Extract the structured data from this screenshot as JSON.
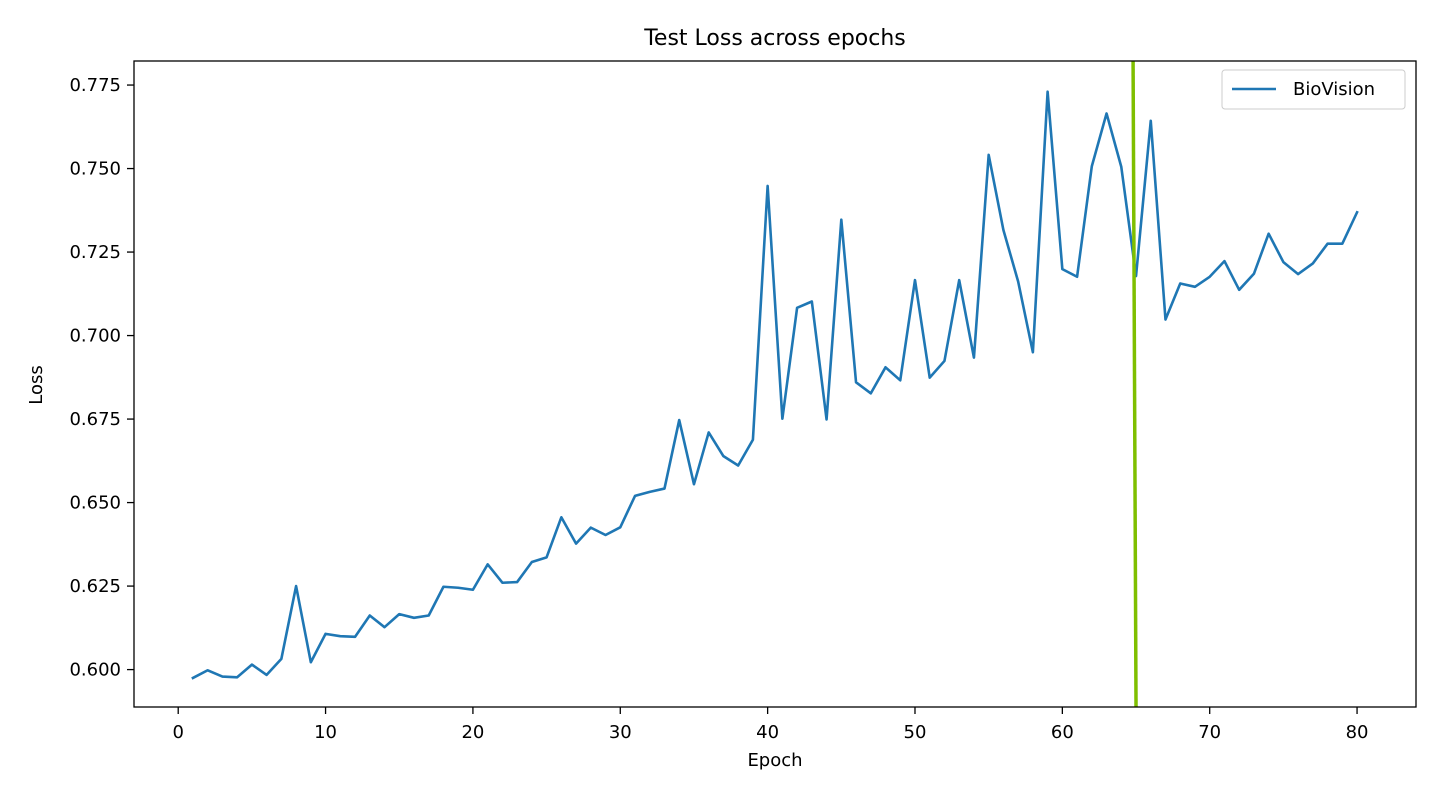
{
  "chart_data": {
    "type": "line",
    "title": "Test Loss across epochs",
    "xlabel": "Epoch",
    "ylabel": "Loss",
    "xlim": [
      -3.0,
      84.0
    ],
    "ylim": [
      0.5888,
      0.7822
    ],
    "xticks": [
      0,
      10,
      20,
      30,
      40,
      50,
      60,
      70,
      80
    ],
    "yticks": [
      0.6,
      0.625,
      0.65,
      0.675,
      0.7,
      0.725,
      0.75,
      0.775
    ],
    "ytick_labels": [
      "0.600",
      "0.625",
      "0.650",
      "0.675",
      "0.700",
      "0.725",
      "0.750",
      "0.775"
    ],
    "grid": false,
    "legend": {
      "position": "top-right"
    },
    "series": [
      {
        "name": "BioVision",
        "color": "#1f77b4",
        "x": [
          1,
          2,
          3,
          4,
          5,
          6,
          7,
          8,
          9,
          10,
          11,
          12,
          13,
          14,
          15,
          16,
          17,
          18,
          19,
          20,
          21,
          22,
          23,
          24,
          25,
          26,
          27,
          28,
          29,
          30,
          31,
          32,
          33,
          34,
          35,
          36,
          37,
          38,
          39,
          40,
          41,
          42,
          43,
          44,
          45,
          46,
          47,
          48,
          49,
          50,
          51,
          52,
          53,
          54,
          55,
          56,
          57,
          58,
          59,
          60,
          61,
          62,
          63,
          64,
          65,
          66,
          67,
          68,
          69,
          70,
          71,
          72,
          73,
          74,
          75,
          76,
          77,
          78,
          79,
          80
        ],
        "y": [
          0.5975,
          0.5998,
          0.5979,
          0.5977,
          0.6015,
          0.5984,
          0.6032,
          0.625,
          0.6022,
          0.6107,
          0.61,
          0.6098,
          0.6162,
          0.6127,
          0.6166,
          0.6155,
          0.6162,
          0.6248,
          0.6245,
          0.6239,
          0.6315,
          0.626,
          0.6262,
          0.6322,
          0.6336,
          0.6456,
          0.6377,
          0.6425,
          0.6403,
          0.6426,
          0.652,
          0.6532,
          0.6542,
          0.6747,
          0.6555,
          0.671,
          0.6639,
          0.6611,
          0.6688,
          0.7448,
          0.6751,
          0.7083,
          0.7102,
          0.6749,
          0.7347,
          0.686,
          0.6827,
          0.6905,
          0.6866,
          0.7166,
          0.6874,
          0.6924,
          0.7166,
          0.6934,
          0.7541,
          0.7316,
          0.7162,
          0.695,
          0.773,
          0.7199,
          0.7176,
          0.7507,
          0.7665,
          0.7505,
          0.7178,
          0.7643,
          0.7048,
          0.7156,
          0.7146,
          0.7176,
          0.7223,
          0.7137,
          0.7185,
          0.7305,
          0.722,
          0.7184,
          0.7216,
          0.7275,
          0.7275,
          0.7369
        ]
      }
    ],
    "annotations": [
      {
        "type": "line",
        "color": "#7fbf00",
        "x1": 64.8,
        "y1": 0.7822,
        "x2": 65.0,
        "y2": 0.5888
      }
    ]
  }
}
